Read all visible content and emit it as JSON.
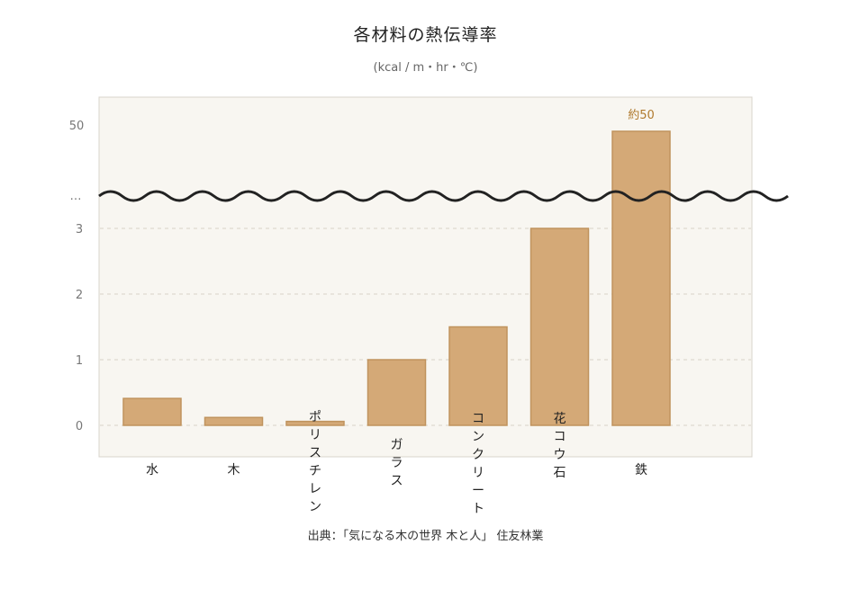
{
  "chart_data": {
    "type": "bar",
    "title": "各材料の熱伝導率",
    "subtitle": "(kcal / m・hr・℃)",
    "categories": [
      "水",
      "木",
      "ポリスチレン",
      "ガラス",
      "コンクリート",
      "花コウ石",
      "鉄"
    ],
    "values": [
      0.41,
      0.12,
      0.06,
      1.0,
      1.5,
      3.0,
      50
    ],
    "value_labels": [
      "",
      "",
      "",
      "",
      "",
      "",
      "約50"
    ],
    "axis_break": {
      "lower_max": 3,
      "upper_value": 50,
      "break_label": "…"
    },
    "y_ticks_lower": [
      0,
      1,
      2,
      3
    ],
    "y_ticks_upper": [
      50
    ],
    "grid": true,
    "source": "出典：「気になる木の世界 木と人」 住友林業"
  },
  "colors": {
    "bar_fill": "#d4a977",
    "bar_stroke": "#c0935e",
    "plot_bg": "#f8f6f1",
    "plot_border": "#d8d4cc",
    "grid": "#d9d2c6",
    "axis_text": "#777777",
    "wave": "#222222",
    "value_label": "#b07a2e"
  }
}
